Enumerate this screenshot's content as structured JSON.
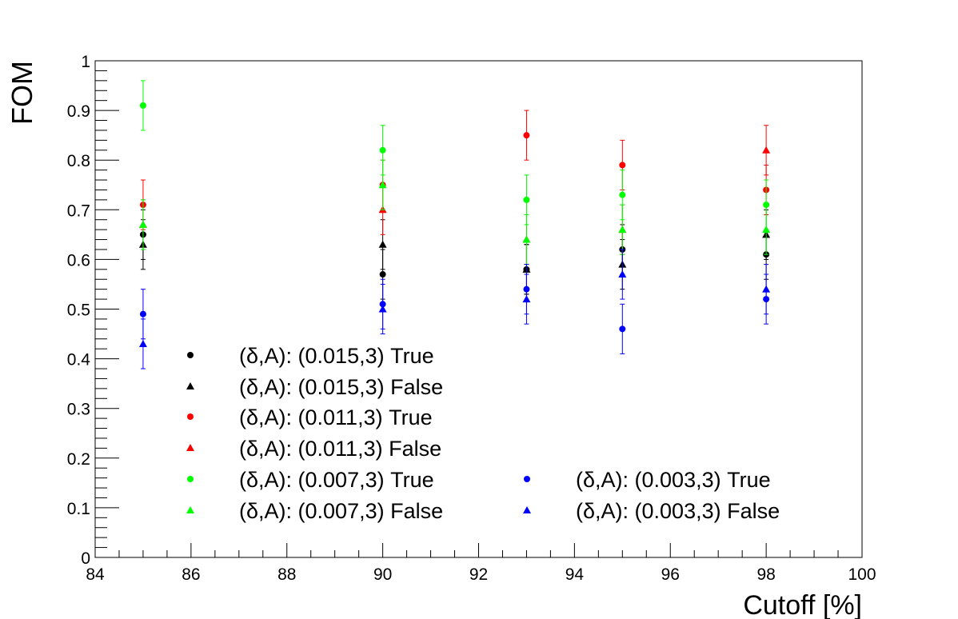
{
  "chart_data": {
    "type": "scatter",
    "title": "",
    "xlabel": "Cutoff [%]",
    "ylabel": "FOM",
    "xlim": [
      84,
      100
    ],
    "ylim": [
      0,
      1
    ],
    "x_ticks": [
      "84",
      "86",
      "88",
      "90",
      "92",
      "94",
      "96",
      "98",
      "100"
    ],
    "y_ticks": [
      "0",
      "0.1",
      "0.2",
      "0.3",
      "0.4",
      "0.5",
      "0.6",
      "0.7",
      "0.8",
      "0.9",
      "1"
    ],
    "grid": false,
    "legend_position": "bottom-left",
    "x": [
      85,
      90,
      93,
      95,
      98
    ],
    "series": [
      {
        "name": "(δ,A): (0.015,3) True",
        "marker": "circle",
        "color": "#000000",
        "values": [
          0.65,
          0.57,
          0.58,
          0.62,
          0.61
        ],
        "errors": [
          0.05,
          0.05,
          0.05,
          0.05,
          0.05
        ]
      },
      {
        "name": "(δ,A): (0.015,3) False",
        "marker": "triangle",
        "color": "#000000",
        "values": [
          0.63,
          0.63,
          0.58,
          0.59,
          0.65
        ],
        "errors": [
          0.05,
          0.05,
          0.05,
          0.05,
          0.05
        ]
      },
      {
        "name": "(δ,A): (0.011,3) True",
        "marker": "circle",
        "color": "#ff0000",
        "values": [
          0.71,
          0.75,
          0.85,
          0.79,
          0.74
        ],
        "errors": [
          0.05,
          0.05,
          0.05,
          0.05,
          0.05
        ]
      },
      {
        "name": "(δ,A): (0.011,3) False",
        "marker": "triangle",
        "color": "#ff0000",
        "values": [
          0.67,
          0.7,
          0.64,
          0.66,
          0.82
        ],
        "errors": [
          0.05,
          0.05,
          0.05,
          0.05,
          0.05
        ]
      },
      {
        "name": "(δ,A): (0.007,3) True",
        "marker": "circle",
        "color": "#00ff00",
        "values": [
          0.91,
          0.82,
          0.72,
          0.73,
          0.71
        ],
        "errors": [
          0.05,
          0.05,
          0.05,
          0.05,
          0.05
        ]
      },
      {
        "name": "(δ,A): (0.007,3) False",
        "marker": "triangle",
        "color": "#00ff00",
        "values": [
          0.67,
          0.75,
          0.64,
          0.66,
          0.66
        ],
        "errors": [
          0.05,
          0.05,
          0.05,
          0.05,
          0.05
        ]
      },
      {
        "name": "(δ,A): (0.003,3) True",
        "marker": "circle",
        "color": "#0000ff",
        "values": [
          0.49,
          0.51,
          0.54,
          0.46,
          0.52
        ],
        "errors": [
          0.05,
          0.05,
          0.05,
          0.05,
          0.05
        ]
      },
      {
        "name": "(δ,A): (0.003,3) False",
        "marker": "triangle",
        "color": "#0000ff",
        "values": [
          0.43,
          0.5,
          0.52,
          0.57,
          0.54
        ],
        "errors": [
          0.05,
          0.05,
          0.05,
          0.05,
          0.05
        ]
      }
    ]
  }
}
